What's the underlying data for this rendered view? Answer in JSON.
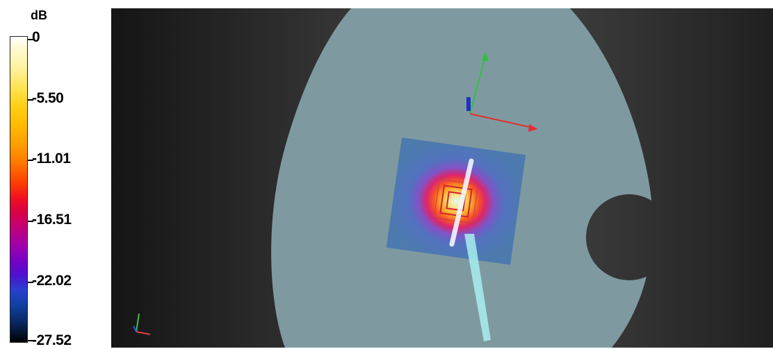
{
  "colorbar": {
    "unit": "dB",
    "labels": [
      "0",
      "-5.50",
      "-11.01",
      "-16.51",
      "-22.02",
      "-27.52"
    ]
  },
  "viewport": {
    "icons": [
      "scene-axes-gizmo-icon",
      "corner-axes-icon",
      "probe-icon"
    ]
  }
}
